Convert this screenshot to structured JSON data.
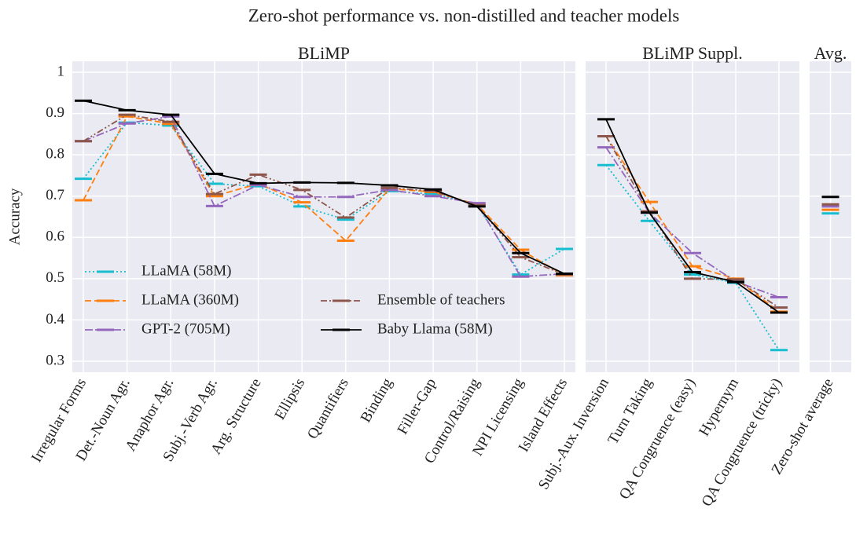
{
  "title": "Zero-shot performance vs. non-distilled and teacher models",
  "chart_data": [
    {
      "type": "line",
      "title": "BLiMP",
      "ylabel": "Accuracy",
      "categories": [
        "Irregular Forms",
        "Det.-Noun Agr.",
        "Anaphor Agr.",
        "Subj.-Verb Agr.",
        "Arg. Structure",
        "Ellipsis",
        "Quantifiers",
        "Binding",
        "Filler-Gap",
        "Control/Raising",
        "NPI Licensing",
        "Island Effects"
      ],
      "ylim": [
        0.3,
        1.0
      ],
      "yticks": [
        0.3,
        0.4,
        0.5,
        0.6,
        0.7,
        0.8,
        0.9,
        1.0
      ],
      "grid": true,
      "series": [
        {
          "name": "LLaMA (58M)",
          "color": "#17becf",
          "linestyle": "dotted",
          "values": [
            0.742,
            0.878,
            0.871,
            0.73,
            0.724,
            0.675,
            0.643,
            0.712,
            0.705,
            0.68,
            0.51,
            0.572
          ]
        },
        {
          "name": "LLaMA (360M)",
          "color": "#ff7f0e",
          "linestyle": "dashed",
          "values": [
            0.69,
            0.893,
            0.875,
            0.7,
            0.73,
            0.685,
            0.592,
            0.718,
            0.71,
            0.68,
            0.57,
            0.508
          ]
        },
        {
          "name": "GPT-2 (705M)",
          "color": "#9467bd",
          "linestyle": "dashdot",
          "values": [
            0.833,
            0.876,
            0.893,
            0.676,
            0.727,
            0.698,
            0.698,
            0.715,
            0.7,
            0.683,
            0.505,
            0.512
          ]
        },
        {
          "name": "Ensemble of teachers",
          "color": "#8c564b",
          "linestyle": "dashdotdot",
          "values": [
            0.833,
            0.897,
            0.88,
            0.705,
            0.752,
            0.715,
            0.648,
            0.72,
            0.712,
            0.678,
            0.552,
            0.51
          ]
        },
        {
          "name": "Baby Llama (58M)",
          "color": "#000000",
          "linestyle": "solid",
          "values": [
            0.931,
            0.908,
            0.897,
            0.754,
            0.731,
            0.733,
            0.732,
            0.726,
            0.716,
            0.675,
            0.562,
            0.512
          ]
        }
      ]
    },
    {
      "type": "line",
      "title": "BLiMP Suppl.",
      "categories": [
        "Subj.-Aux. Inversion",
        "Turn Taking",
        "QA Congruence (easy)",
        "Hypernym",
        "QA Congruence (tricky)"
      ],
      "ylim": [
        0.3,
        1.0
      ],
      "grid": true,
      "series": [
        {
          "color": "#17becf",
          "linestyle": "dotted",
          "values": [
            0.775,
            0.64,
            0.51,
            0.49,
            0.327
          ]
        },
        {
          "color": "#ff7f0e",
          "linestyle": "dashed",
          "values": [
            0.845,
            0.686,
            0.53,
            0.5,
            0.42
          ]
        },
        {
          "color": "#9467bd",
          "linestyle": "dashdot",
          "values": [
            0.818,
            0.66,
            0.562,
            0.493,
            0.455
          ]
        },
        {
          "color": "#8c564b",
          "linestyle": "dashdotdot",
          "values": [
            0.845,
            0.663,
            0.5,
            0.498,
            0.43
          ]
        },
        {
          "color": "#000000",
          "linestyle": "solid",
          "values": [
            0.886,
            0.66,
            0.516,
            0.492,
            0.418
          ]
        }
      ]
    },
    {
      "type": "line",
      "title": "Avg.",
      "categories": [
        "Zero-shot average"
      ],
      "ylim": [
        0.3,
        1.0
      ],
      "grid": true,
      "series": [
        {
          "color": "#17becf",
          "linestyle": "dotted",
          "values": [
            0.658
          ]
        },
        {
          "color": "#ff7f0e",
          "linestyle": "dashed",
          "values": [
            0.667
          ]
        },
        {
          "color": "#9467bd",
          "linestyle": "dashdot",
          "values": [
            0.675
          ]
        },
        {
          "color": "#8c564b",
          "linestyle": "dashdotdot",
          "values": [
            0.68
          ]
        },
        {
          "color": "#000000",
          "linestyle": "solid",
          "values": [
            0.698
          ]
        }
      ]
    }
  ]
}
